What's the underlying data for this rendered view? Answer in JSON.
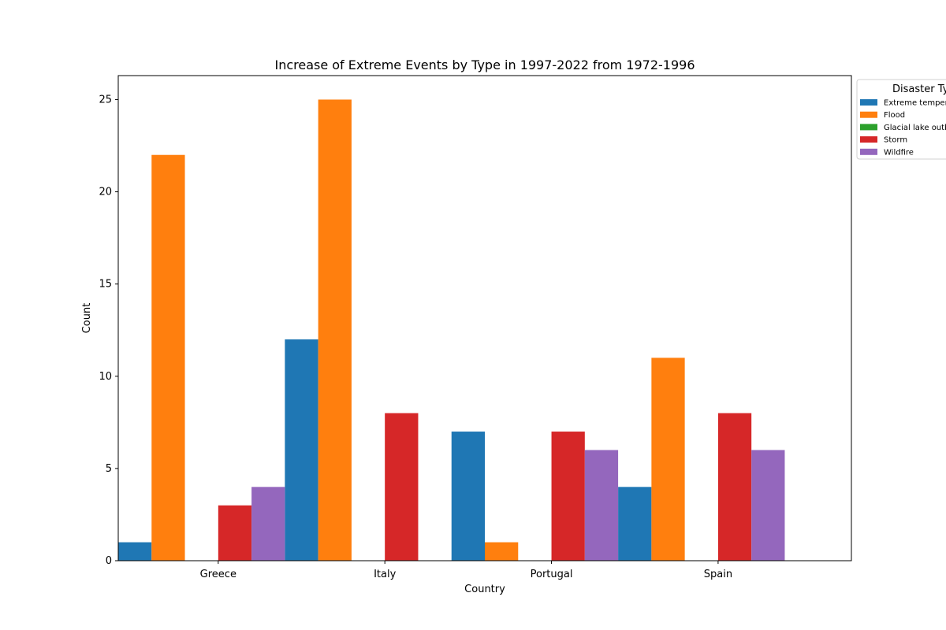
{
  "chart_data": {
    "type": "bar",
    "title": "Increase of Extreme Events by Type in 1997-2022 from 1972-1996",
    "xlabel": "Country",
    "ylabel": "Count",
    "ylim": [
      0,
      26.3
    ],
    "yticks": [
      0,
      5,
      10,
      15,
      20,
      25
    ],
    "categories": [
      "Greece",
      "Italy",
      "Portugal",
      "Spain"
    ],
    "legend": {
      "title": "Disaster Type",
      "placement": "outside-top-right"
    },
    "series": [
      {
        "name": "Extreme temperature",
        "color": "#1f77b4",
        "values": [
          1,
          12,
          7,
          4
        ]
      },
      {
        "name": "Flood",
        "color": "#ff7f0e",
        "values": [
          22,
          25,
          1,
          11
        ]
      },
      {
        "name": "Glacial lake outburst",
        "color": "#2ca02c",
        "values": [
          0,
          0,
          0,
          0
        ]
      },
      {
        "name": "Storm",
        "color": "#d62728",
        "values": [
          3,
          8,
          7,
          8
        ]
      },
      {
        "name": "Wildfire",
        "color": "#9467bd",
        "values": [
          4,
          0,
          6,
          6
        ]
      }
    ]
  }
}
